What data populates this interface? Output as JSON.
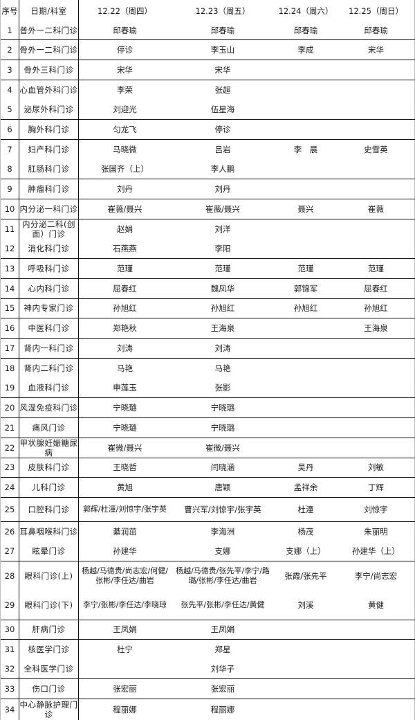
{
  "header": {
    "index": "序号",
    "dept": "日期/科室",
    "dates": [
      "12.22（周四）",
      "12.23（周五）",
      "12.24（周六）",
      "12.25（周日）"
    ]
  },
  "rows": [
    {
      "no": "1",
      "dept": "普外一二科门诊",
      "d": [
        "邱春瑜",
        "邱春瑜",
        "邱春瑜",
        "邱春瑜"
      ]
    },
    {
      "no": "2",
      "dept": "骨外一二科门诊",
      "d": [
        "停诊",
        "李玉山",
        "李成",
        "宋华"
      ]
    },
    {
      "no": "3",
      "dept": "骨外三科门诊",
      "d": [
        "宋华",
        "宋华",
        "",
        ""
      ]
    },
    {
      "no": "4",
      "dept": "心血管外科门诊",
      "d": [
        "李荣",
        "张超",
        "",
        ""
      ]
    },
    {
      "no": "5",
      "dept": "泌尿外科门诊",
      "d": [
        "刘迎光",
        "伍星海",
        "",
        ""
      ]
    },
    {
      "no": "6",
      "dept": "胸外科门诊",
      "d": [
        "匀龙飞",
        "停诊",
        "",
        ""
      ]
    },
    {
      "no": "7",
      "dept": "妇产科门诊",
      "d": [
        "马晓微",
        "吕岩",
        "李　晨",
        "史雪英"
      ]
    },
    {
      "no": "8",
      "dept": "肛肠科门诊",
      "d": [
        "张国齐（上）",
        "李人鹏",
        "",
        ""
      ]
    },
    {
      "no": "9",
      "dept": "肿瘤科门诊",
      "d": [
        "刘丹",
        "刘丹",
        "",
        ""
      ]
    },
    {
      "no": "10",
      "dept": "内分泌一科门诊",
      "d": [
        "崔薇/聂兴",
        "崔薇/聂兴",
        "聂兴",
        "崔薇"
      ]
    },
    {
      "no": "11",
      "dept": "内分泌二科(创面）门诊",
      "d": [
        "赵娟",
        "刘洋",
        "",
        ""
      ]
    },
    {
      "no": "12",
      "dept": "消化科门诊",
      "d": [
        "石燕燕",
        "李阳",
        "",
        ""
      ]
    },
    {
      "no": "13",
      "dept": "呼吸科门诊",
      "d": [
        "范瑾",
        "范瑾",
        "范瑾",
        "范瑾"
      ]
    },
    {
      "no": "14",
      "dept": "心内科门诊",
      "d": [
        "屈春红",
        "魏凤华",
        "郭锦军",
        "屈春红"
      ]
    },
    {
      "no": "15",
      "dept": "神内专家门诊",
      "d": [
        "孙旭红",
        "孙旭红",
        "孙旭红",
        "孙旭红"
      ]
    },
    {
      "no": "16",
      "dept": "中医科门诊",
      "d": [
        "郑艳秋",
        "王海泉",
        "",
        "王海泉"
      ]
    },
    {
      "no": "17",
      "dept": "肾内一科门诊",
      "d": [
        "刘涛",
        "刘涛",
        "",
        ""
      ]
    },
    {
      "no": "18",
      "dept": "肾内二科门诊",
      "d": [
        "马艳",
        "马艳",
        "",
        ""
      ]
    },
    {
      "no": "19",
      "dept": "血液科门诊",
      "d": [
        "申莲玉",
        "张影",
        "",
        ""
      ]
    },
    {
      "no": "20",
      "dept": "风湿免疫科门诊",
      "d": [
        "宁晓璐",
        "宁晓璐",
        "",
        ""
      ]
    },
    {
      "no": "21",
      "dept": "痛风门诊",
      "d": [
        "宁晓璐",
        "宁晓璐",
        "",
        ""
      ]
    },
    {
      "no": "22",
      "dept": "甲状腺妊娠糖尿病",
      "d": [
        "崔微/聂兴",
        "崔微/聂兴",
        "",
        ""
      ]
    },
    {
      "no": "23",
      "dept": "皮肤科门诊",
      "d": [
        "王晓哲",
        "闫晓涵",
        "吴丹",
        "刘敏"
      ]
    },
    {
      "no": "24",
      "dept": "儿科门诊",
      "d": [
        "黄旭",
        "唐颖",
        "孟祥余",
        "丁辉"
      ]
    },
    {
      "no": "25",
      "dept": "口腔科门诊",
      "d": [
        "郭辉/杜潼/刘惊宇/张宇英",
        "曹兴军/刘惊宇/张宇英",
        "杜潼",
        "刘惊宇"
      ]
    },
    {
      "no": "26",
      "dept": "耳鼻咽喉科门诊",
      "d": [
        "綦润茁",
        "李海洲",
        "杨茂",
        "朱丽明"
      ]
    },
    {
      "no": "27",
      "dept": "眩晕门诊",
      "d": [
        "孙建华",
        "支娜",
        "支娜（上）",
        "孙建华（上）"
      ]
    },
    {
      "no": "28",
      "dept": "眼科门诊(上)",
      "d": [
        "杨越/马德贵/尚志宏/何健/张彬/李任达/曲岩",
        "杨越/马德贵/张先平/李宁/路璐/张彬/李任达/曲岩",
        "张霞/张先平",
        "李宁/尚志宏"
      ]
    },
    {
      "no": "29",
      "dept": "眼科门诊(下)",
      "d": [
        "李宁/张彬/李任达/李晓琼",
        "张先平/张彬/李任达/黄健",
        "刘溪",
        "黄健"
      ]
    },
    {
      "no": "30",
      "dept": "肝病门诊",
      "d": [
        "王凤娟",
        "王凤娟",
        "",
        ""
      ]
    },
    {
      "no": "31",
      "dept": "核医学门诊",
      "d": [
        "杜宁",
        "郑星",
        "",
        ""
      ]
    },
    {
      "no": "32",
      "dept": "全科医学门诊",
      "d": [
        "",
        "刘华子",
        "",
        ""
      ]
    },
    {
      "no": "33",
      "dept": "伤口门诊",
      "d": [
        "张宏丽",
        "张宏丽",
        "",
        ""
      ]
    },
    {
      "no": "34",
      "dept": "中心静脉护理门诊",
      "d": [
        "程丽娜",
        "程丽娜",
        "",
        ""
      ]
    }
  ]
}
